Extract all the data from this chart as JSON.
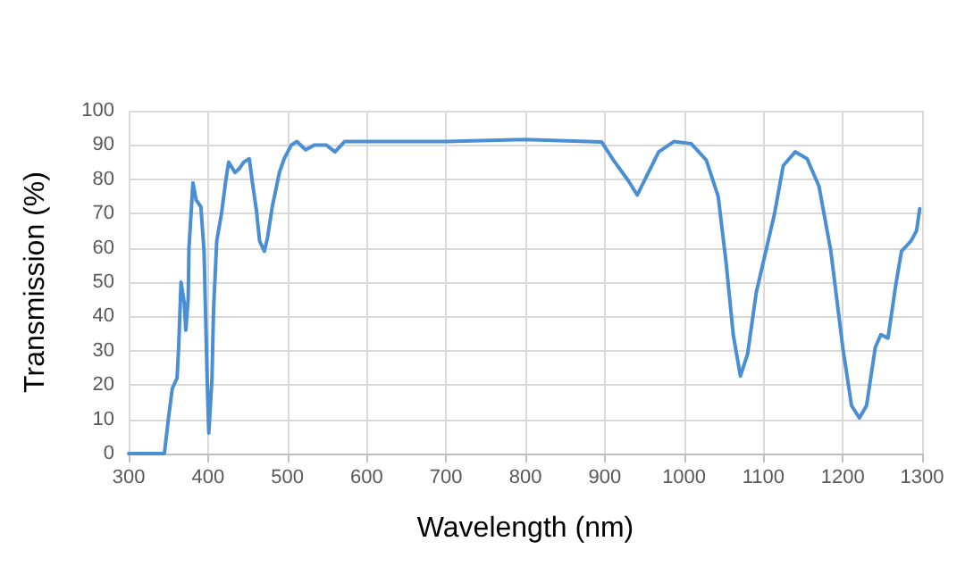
{
  "chart_data": {
    "type": "line",
    "xlabel": "Wavelength (nm)",
    "ylabel": "Transmission (%)",
    "xlim": [
      300,
      1300
    ],
    "xticks": [
      300,
      400,
      500,
      600,
      700,
      800,
      900,
      1000,
      1100,
      1200,
      1300
    ],
    "ylim": [
      0,
      100
    ],
    "yticks": [
      0,
      10,
      20,
      30,
      40,
      50,
      60,
      70,
      80,
      90,
      100
    ],
    "grid": true,
    "marker": "none",
    "line_style": "solid",
    "series": [
      {
        "color": "#4a8fd4",
        "x": [
          300,
          345,
          350,
          355,
          361,
          363,
          366,
          370,
          372,
          375,
          376,
          381,
          385,
          391,
          395,
          399,
          401,
          405,
          407,
          411,
          417,
          422,
          426,
          434,
          439,
          445,
          452,
          456,
          461,
          465,
          471,
          475,
          481,
          490,
          496,
          505,
          512,
          523,
          534,
          549,
          560,
          572,
          700,
          800,
          896,
          911,
          930,
          941,
          953,
          968,
          987,
          1009,
          1028,
          1043,
          1053,
          1062,
          1071,
          1080,
          1091,
          1102,
          1114,
          1125,
          1140,
          1155,
          1170,
          1185,
          1200,
          1211,
          1221,
          1230,
          1241,
          1248,
          1257,
          1267,
          1274,
          1286,
          1293,
          1297
        ],
        "values": [
          0,
          0,
          10,
          19,
          22,
          31,
          50,
          44,
          36,
          45,
          60,
          79,
          74,
          72,
          59,
          21,
          6,
          22,
          42,
          62,
          70,
          79,
          85,
          82,
          83,
          85,
          86,
          79,
          71,
          62,
          59,
          63,
          72,
          82,
          86,
          90,
          91,
          88.6,
          90,
          90,
          88,
          91,
          91,
          91.6,
          90.9,
          85.6,
          79.5,
          75.4,
          81,
          88,
          91,
          90.4,
          85.6,
          75,
          55.6,
          34.6,
          22.6,
          29,
          47,
          58,
          70,
          84,
          88,
          86,
          78,
          59,
          31,
          14,
          10.4,
          14,
          31,
          34.7,
          33.7,
          49.5,
          59,
          62,
          65,
          71.4
        ]
      }
    ]
  }
}
